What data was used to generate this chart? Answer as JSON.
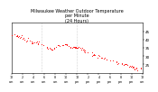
{
  "title": "Milwaukee Weather Outdoor Temperature\nper Minute\n(24 Hours)",
  "title_fontsize": 3.5,
  "dot_color": "#ff0000",
  "dot_size": 0.4,
  "bg_color": "#ffffff",
  "ylim": [
    20,
    50
  ],
  "yticks": [
    25,
    30,
    35,
    40,
    45
  ],
  "ytick_fontsize": 3.0,
  "xtick_fontsize": 2.4,
  "grid_color": "#aaaaaa",
  "vlines": [
    5.5,
    12.0
  ],
  "temp_data": [
    43,
    43,
    43,
    42,
    42,
    41,
    40,
    40,
    39,
    38,
    38,
    38,
    37,
    36,
    35,
    34,
    34,
    35,
    36,
    36,
    37,
    37,
    36,
    36,
    36,
    35,
    35,
    34,
    33,
    33,
    32,
    31,
    30,
    30,
    29,
    28,
    27,
    27,
    26,
    26,
    25,
    25,
    24,
    24,
    23,
    22,
    22,
    22
  ],
  "temp_hours": [
    0.0,
    0.3,
    0.6,
    1.0,
    1.5,
    2.0,
    2.5,
    3.0,
    3.5,
    4.0,
    4.5,
    5.0,
    5.5,
    6.0,
    6.5,
    7.0,
    7.5,
    8.0,
    8.5,
    9.0,
    9.5,
    10.0,
    10.5,
    11.0,
    11.5,
    12.0,
    12.5,
    13.0,
    13.5,
    14.0,
    14.5,
    15.0,
    15.5,
    16.0,
    16.5,
    17.5,
    18.5,
    19.0,
    19.5,
    20.0,
    20.5,
    21.0,
    21.5,
    22.0,
    22.5,
    23.0,
    23.5,
    24.0
  ],
  "xlim": [
    0,
    24
  ],
  "xtick_hours": [
    0,
    2,
    4,
    6,
    8,
    10,
    12,
    14,
    16,
    18,
    20,
    22,
    24
  ],
  "xtick_labels": [
    "12\nam",
    "2\nam",
    "4\nam",
    "6\nam",
    "8\nam",
    "10\nam",
    "12\npm",
    "2\npm",
    "4\npm",
    "6\npm",
    "8\npm",
    "10\npm",
    "12\nam"
  ]
}
